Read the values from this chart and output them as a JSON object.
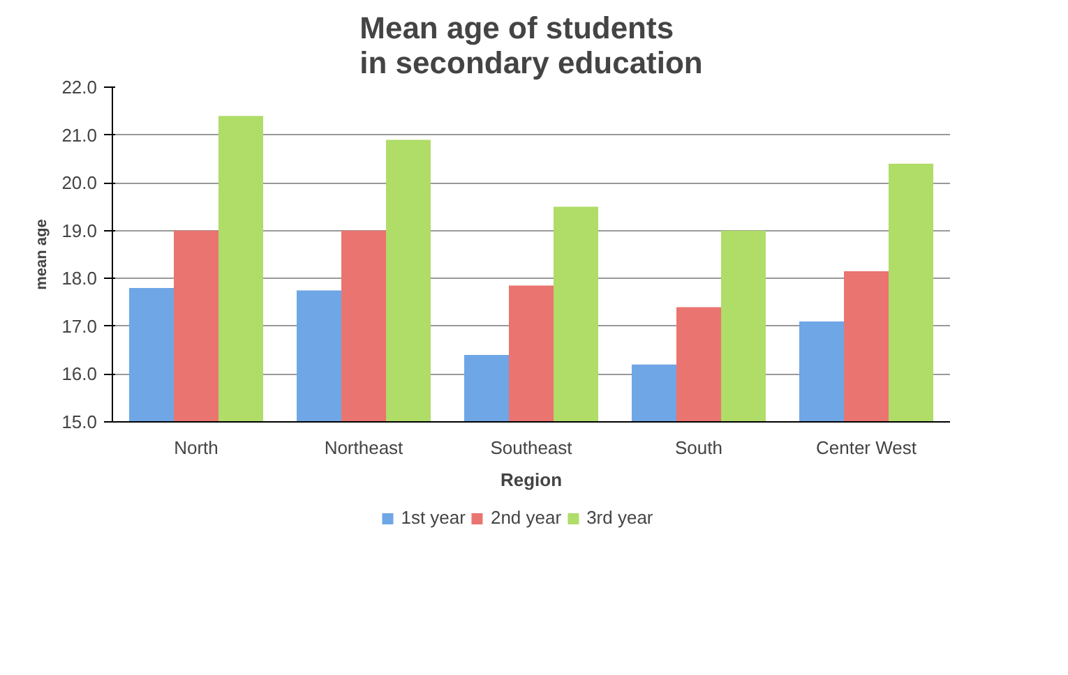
{
  "chart_data": {
    "type": "bar",
    "title": "Mean age of students in secondary education",
    "xlabel": "Region",
    "ylabel": "mean age",
    "categories": [
      "North",
      "Northeast",
      "Southeast",
      "South",
      "Center West"
    ],
    "series": [
      {
        "name": "1st year",
        "color": "#6fa6e6",
        "values": [
          17.8,
          17.75,
          16.4,
          16.2,
          17.1
        ]
      },
      {
        "name": "2nd year",
        "color": "#ea7470",
        "values": [
          19.0,
          19.0,
          17.85,
          17.4,
          18.15
        ]
      },
      {
        "name": "3rd year",
        "color": "#b0dc68",
        "values": [
          21.4,
          20.9,
          19.5,
          19.0,
          20.4
        ]
      }
    ],
    "ylim": [
      15,
      22
    ],
    "yticks": [
      {
        "value": 15,
        "label": "15.0"
      },
      {
        "value": 16,
        "label": "16.0"
      },
      {
        "value": 17,
        "label": "17.0"
      },
      {
        "value": 18,
        "label": "18.0"
      },
      {
        "value": 19,
        "label": "19.0"
      },
      {
        "value": 20,
        "label": "20.0"
      },
      {
        "value": 21,
        "label": "21.0"
      },
      {
        "value": 22,
        "label": "22.0"
      }
    ],
    "grid": "y",
    "legend": "bottom"
  }
}
